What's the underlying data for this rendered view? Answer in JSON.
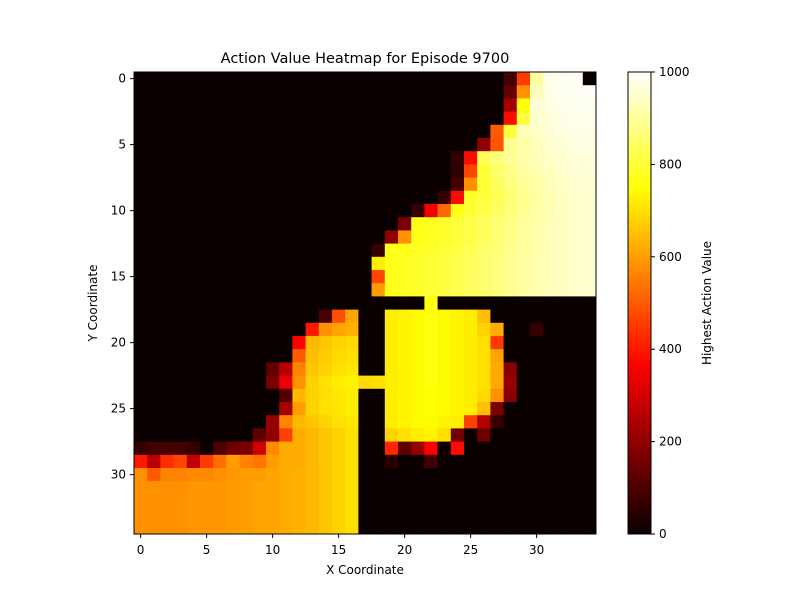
{
  "chart_data": {
    "type": "heatmap",
    "title": "Action Value Heatmap for Episode 9700",
    "xlabel": "X Coordinate",
    "ylabel": "Y Coordinate",
    "x_ticks": [
      0,
      5,
      10,
      15,
      20,
      25,
      30
    ],
    "y_ticks": [
      0,
      5,
      10,
      15,
      20,
      25,
      30
    ],
    "colorbar_label": "Highest Action Value",
    "colorbar_ticks": [
      0,
      200,
      400,
      600,
      800,
      1000
    ],
    "colormap": "hot",
    "vmin": 0,
    "vmax": 1000,
    "grid": false,
    "grid_size": [
      35,
      35
    ],
    "values": [
      [
        0,
        0,
        0,
        0,
        0,
        0,
        0,
        0,
        0,
        0,
        0,
        0,
        0,
        0,
        0,
        0,
        0,
        0,
        0,
        0,
        0,
        0,
        0,
        0,
        0,
        0,
        0,
        0,
        80,
        450,
        900,
        980,
        990,
        995,
        0
      ],
      [
        0,
        0,
        0,
        0,
        0,
        0,
        0,
        0,
        0,
        0,
        0,
        0,
        0,
        0,
        0,
        0,
        0,
        0,
        0,
        0,
        0,
        0,
        0,
        0,
        0,
        0,
        0,
        0,
        130,
        580,
        930,
        975,
        985,
        990,
        990
      ],
      [
        0,
        0,
        0,
        0,
        0,
        0,
        0,
        0,
        0,
        0,
        0,
        0,
        0,
        0,
        0,
        0,
        0,
        0,
        0,
        0,
        0,
        0,
        0,
        0,
        0,
        0,
        0,
        0,
        220,
        760,
        960,
        970,
        980,
        985,
        985
      ],
      [
        0,
        0,
        0,
        0,
        0,
        0,
        0,
        0,
        0,
        0,
        0,
        0,
        0,
        0,
        0,
        0,
        0,
        0,
        0,
        0,
        0,
        0,
        0,
        0,
        0,
        0,
        0,
        0,
        380,
        810,
        950,
        965,
        975,
        980,
        980
      ],
      [
        0,
        0,
        0,
        0,
        0,
        0,
        0,
        0,
        0,
        0,
        0,
        0,
        0,
        0,
        0,
        0,
        0,
        0,
        0,
        0,
        0,
        0,
        0,
        0,
        0,
        0,
        0,
        500,
        810,
        930,
        945,
        960,
        970,
        975,
        975
      ],
      [
        0,
        0,
        0,
        0,
        0,
        0,
        0,
        0,
        0,
        0,
        0,
        0,
        0,
        0,
        0,
        0,
        0,
        0,
        0,
        0,
        0,
        0,
        0,
        0,
        0,
        0,
        190,
        490,
        890,
        915,
        935,
        950,
        960,
        970,
        970
      ],
      [
        0,
        0,
        0,
        0,
        0,
        0,
        0,
        0,
        0,
        0,
        0,
        0,
        0,
        0,
        0,
        0,
        0,
        0,
        0,
        0,
        0,
        0,
        0,
        0,
        60,
        380,
        830,
        870,
        895,
        915,
        930,
        945,
        955,
        965,
        965
      ],
      [
        0,
        0,
        0,
        0,
        0,
        0,
        0,
        0,
        0,
        0,
        0,
        0,
        0,
        0,
        0,
        0,
        0,
        0,
        0,
        0,
        0,
        0,
        0,
        0,
        50,
        470,
        800,
        850,
        880,
        905,
        920,
        935,
        950,
        960,
        960
      ],
      [
        0,
        0,
        0,
        0,
        0,
        0,
        0,
        0,
        0,
        0,
        0,
        0,
        0,
        0,
        0,
        0,
        0,
        0,
        0,
        0,
        0,
        0,
        0,
        0,
        80,
        580,
        800,
        840,
        870,
        895,
        915,
        930,
        945,
        955,
        955
      ],
      [
        0,
        0,
        0,
        0,
        0,
        0,
        0,
        0,
        0,
        0,
        0,
        0,
        0,
        0,
        0,
        0,
        0,
        0,
        0,
        0,
        0,
        0,
        0,
        60,
        380,
        790,
        810,
        830,
        860,
        885,
        905,
        925,
        940,
        950,
        950
      ],
      [
        0,
        0,
        0,
        0,
        0,
        0,
        0,
        0,
        0,
        0,
        0,
        0,
        0,
        0,
        0,
        0,
        0,
        0,
        0,
        0,
        0,
        60,
        330,
        520,
        770,
        800,
        820,
        845,
        870,
        890,
        910,
        925,
        940,
        950,
        950
      ],
      [
        0,
        0,
        0,
        0,
        0,
        0,
        0,
        0,
        0,
        0,
        0,
        0,
        0,
        0,
        0,
        0,
        0,
        0,
        0,
        0,
        160,
        770,
        780,
        790,
        805,
        820,
        840,
        860,
        880,
        900,
        915,
        930,
        940,
        950,
        950
      ],
      [
        0,
        0,
        0,
        0,
        0,
        0,
        0,
        0,
        0,
        0,
        0,
        0,
        0,
        0,
        0,
        0,
        0,
        0,
        0,
        190,
        580,
        770,
        780,
        790,
        805,
        820,
        840,
        860,
        880,
        900,
        915,
        930,
        940,
        950,
        950
      ],
      [
        0,
        0,
        0,
        0,
        0,
        0,
        0,
        0,
        0,
        0,
        0,
        0,
        0,
        0,
        0,
        0,
        0,
        0,
        60,
        770,
        770,
        780,
        790,
        800,
        815,
        830,
        850,
        865,
        885,
        900,
        915,
        930,
        940,
        950,
        950
      ],
      [
        0,
        0,
        0,
        0,
        0,
        0,
        0,
        0,
        0,
        0,
        0,
        0,
        0,
        0,
        0,
        0,
        0,
        0,
        720,
        770,
        780,
        790,
        800,
        810,
        825,
        840,
        855,
        870,
        890,
        905,
        920,
        930,
        940,
        950,
        950
      ],
      [
        0,
        0,
        0,
        0,
        0,
        0,
        0,
        0,
        0,
        0,
        0,
        0,
        0,
        0,
        0,
        0,
        0,
        0,
        470,
        770,
        780,
        790,
        800,
        810,
        825,
        840,
        855,
        870,
        890,
        905,
        920,
        930,
        940,
        950,
        950
      ],
      [
        0,
        0,
        0,
        0,
        0,
        0,
        0,
        0,
        0,
        0,
        0,
        0,
        0,
        0,
        0,
        0,
        0,
        0,
        600,
        770,
        780,
        790,
        800,
        810,
        825,
        840,
        855,
        870,
        890,
        905,
        920,
        930,
        940,
        950,
        950
      ],
      [
        0,
        0,
        0,
        0,
        0,
        0,
        0,
        0,
        0,
        0,
        0,
        0,
        0,
        0,
        0,
        0,
        0,
        0,
        0,
        0,
        0,
        0,
        760,
        0,
        0,
        0,
        0,
        0,
        0,
        0,
        0,
        0,
        0,
        0,
        0
      ],
      [
        0,
        0,
        0,
        0,
        0,
        0,
        0,
        0,
        0,
        0,
        0,
        0,
        0,
        0,
        90,
        480,
        610,
        0,
        0,
        720,
        730,
        740,
        760,
        740,
        730,
        720,
        650,
        0,
        0,
        0,
        0,
        0,
        0,
        0,
        0
      ],
      [
        0,
        0,
        0,
        0,
        0,
        0,
        0,
        0,
        0,
        0,
        0,
        0,
        0,
        400,
        580,
        610,
        630,
        0,
        0,
        720,
        730,
        740,
        760,
        740,
        730,
        720,
        680,
        620,
        0,
        0,
        60,
        0,
        0,
        0,
        0
      ],
      [
        0,
        0,
        0,
        0,
        0,
        0,
        0,
        0,
        0,
        0,
        0,
        0,
        350,
        640,
        660,
        680,
        690,
        0,
        0,
        720,
        730,
        740,
        760,
        740,
        730,
        720,
        700,
        450,
        0,
        0,
        0,
        0,
        0,
        0,
        0
      ],
      [
        0,
        0,
        0,
        0,
        0,
        0,
        0,
        0,
        0,
        0,
        0,
        0,
        500,
        650,
        670,
        690,
        700,
        0,
        0,
        720,
        730,
        740,
        760,
        740,
        730,
        720,
        700,
        610,
        0,
        0,
        0,
        0,
        0,
        0,
        0
      ],
      [
        0,
        0,
        0,
        0,
        0,
        0,
        0,
        0,
        0,
        0,
        120,
        250,
        560,
        660,
        680,
        700,
        710,
        0,
        0,
        720,
        730,
        740,
        760,
        740,
        730,
        720,
        700,
        620,
        180,
        0,
        0,
        0,
        0,
        0,
        0
      ],
      [
        0,
        0,
        0,
        0,
        0,
        0,
        0,
        0,
        0,
        0,
        160,
        320,
        580,
        680,
        700,
        720,
        730,
        690,
        700,
        720,
        730,
        740,
        760,
        740,
        730,
        720,
        700,
        620,
        200,
        0,
        0,
        0,
        0,
        0,
        0
      ],
      [
        0,
        0,
        0,
        0,
        0,
        0,
        0,
        0,
        0,
        0,
        0,
        100,
        640,
        680,
        700,
        710,
        720,
        0,
        0,
        720,
        730,
        740,
        750,
        740,
        730,
        720,
        690,
        580,
        180,
        0,
        0,
        0,
        0,
        0,
        0
      ],
      [
        0,
        0,
        0,
        0,
        0,
        0,
        0,
        0,
        0,
        0,
        0,
        220,
        600,
        680,
        700,
        710,
        720,
        0,
        0,
        720,
        730,
        740,
        750,
        740,
        730,
        720,
        650,
        160,
        0,
        0,
        0,
        0,
        0,
        0,
        0
      ],
      [
        0,
        0,
        0,
        0,
        0,
        0,
        0,
        0,
        0,
        0,
        200,
        560,
        640,
        660,
        680,
        700,
        710,
        0,
        0,
        720,
        730,
        740,
        740,
        730,
        720,
        460,
        240,
        60,
        0,
        0,
        0,
        0,
        0,
        0,
        0
      ],
      [
        0,
        0,
        0,
        0,
        0,
        0,
        0,
        0,
        0,
        120,
        190,
        460,
        620,
        640,
        660,
        680,
        700,
        0,
        0,
        680,
        700,
        720,
        730,
        700,
        150,
        0,
        140,
        0,
        0,
        0,
        0,
        0,
        0,
        0,
        0
      ],
      [
        60,
        80,
        80,
        80,
        60,
        0,
        100,
        140,
        160,
        280,
        570,
        620,
        620,
        640,
        660,
        680,
        700,
        0,
        0,
        420,
        120,
        200,
        360,
        0,
        380,
        0,
        0,
        0,
        0,
        0,
        0,
        0,
        0,
        0,
        0
      ],
      [
        400,
        250,
        430,
        470,
        260,
        450,
        530,
        600,
        560,
        540,
        600,
        620,
        620,
        640,
        660,
        680,
        700,
        0,
        0,
        40,
        0,
        0,
        80,
        0,
        0,
        0,
        0,
        0,
        0,
        0,
        0,
        0,
        0,
        0,
        0
      ],
      [
        580,
        500,
        560,
        560,
        570,
        570,
        580,
        590,
        600,
        600,
        610,
        620,
        630,
        640,
        660,
        680,
        700,
        0,
        0,
        0,
        0,
        0,
        0,
        0,
        0,
        0,
        0,
        0,
        0,
        0,
        0,
        0,
        0,
        0,
        0
      ],
      [
        580,
        580,
        580,
        580,
        590,
        590,
        590,
        600,
        600,
        610,
        610,
        620,
        630,
        640,
        660,
        680,
        700,
        0,
        0,
        0,
        0,
        0,
        0,
        0,
        0,
        0,
        0,
        0,
        0,
        0,
        0,
        0,
        0,
        0,
        0
      ],
      [
        580,
        580,
        580,
        580,
        590,
        590,
        590,
        600,
        600,
        610,
        610,
        620,
        630,
        640,
        660,
        680,
        700,
        0,
        0,
        0,
        0,
        0,
        0,
        0,
        0,
        0,
        0,
        0,
        0,
        0,
        0,
        0,
        0,
        0,
        0
      ],
      [
        580,
        580,
        580,
        580,
        590,
        590,
        590,
        600,
        600,
        610,
        610,
        620,
        630,
        640,
        660,
        680,
        700,
        0,
        0,
        0,
        0,
        0,
        0,
        0,
        0,
        0,
        0,
        0,
        0,
        0,
        0,
        0,
        0,
        0,
        0
      ],
      [
        580,
        580,
        580,
        580,
        590,
        590,
        590,
        600,
        600,
        610,
        610,
        620,
        630,
        640,
        660,
        680,
        700,
        0,
        0,
        0,
        0,
        0,
        0,
        0,
        0,
        0,
        0,
        0,
        0,
        0,
        0,
        0,
        0,
        0,
        0
      ]
    ]
  }
}
